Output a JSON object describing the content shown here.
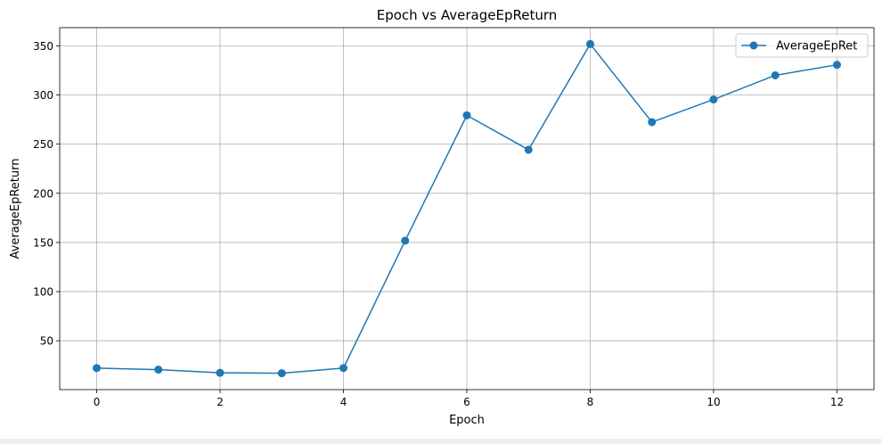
{
  "chart_data": {
    "type": "line",
    "title": "Epoch vs AverageEpReturn",
    "xlabel": "Epoch",
    "ylabel": "AverageEpReturn",
    "x": [
      0,
      1,
      2,
      3,
      4,
      5,
      6,
      7,
      8,
      9,
      10,
      11,
      12
    ],
    "series": [
      {
        "name": "AverageEpRet",
        "color": "#1f77b4",
        "marker": "circle",
        "values": [
          22.2,
          20.6,
          17.4,
          17.0,
          22.2,
          151.8,
          279.3,
          244.3,
          351.8,
          272.4,
          295.4,
          320.0,
          330.7
        ]
      }
    ],
    "xticks": [
      0,
      2,
      4,
      6,
      8,
      10,
      12
    ],
    "xtick_labels": [
      "0",
      "2",
      "4",
      "6",
      "8",
      10,
      "12"
    ],
    "yticks": [
      50,
      100,
      150,
      200,
      250,
      300,
      350
    ],
    "ytick_labels": [
      "50",
      "100",
      "150",
      "200",
      "250",
      "300",
      "350"
    ],
    "xlim": [
      -0.6,
      12.6
    ],
    "ylim": [
      0.3,
      368.5
    ],
    "grid": true,
    "legend": {
      "position": "top-right",
      "entries": [
        "AverageEpRet"
      ]
    }
  }
}
